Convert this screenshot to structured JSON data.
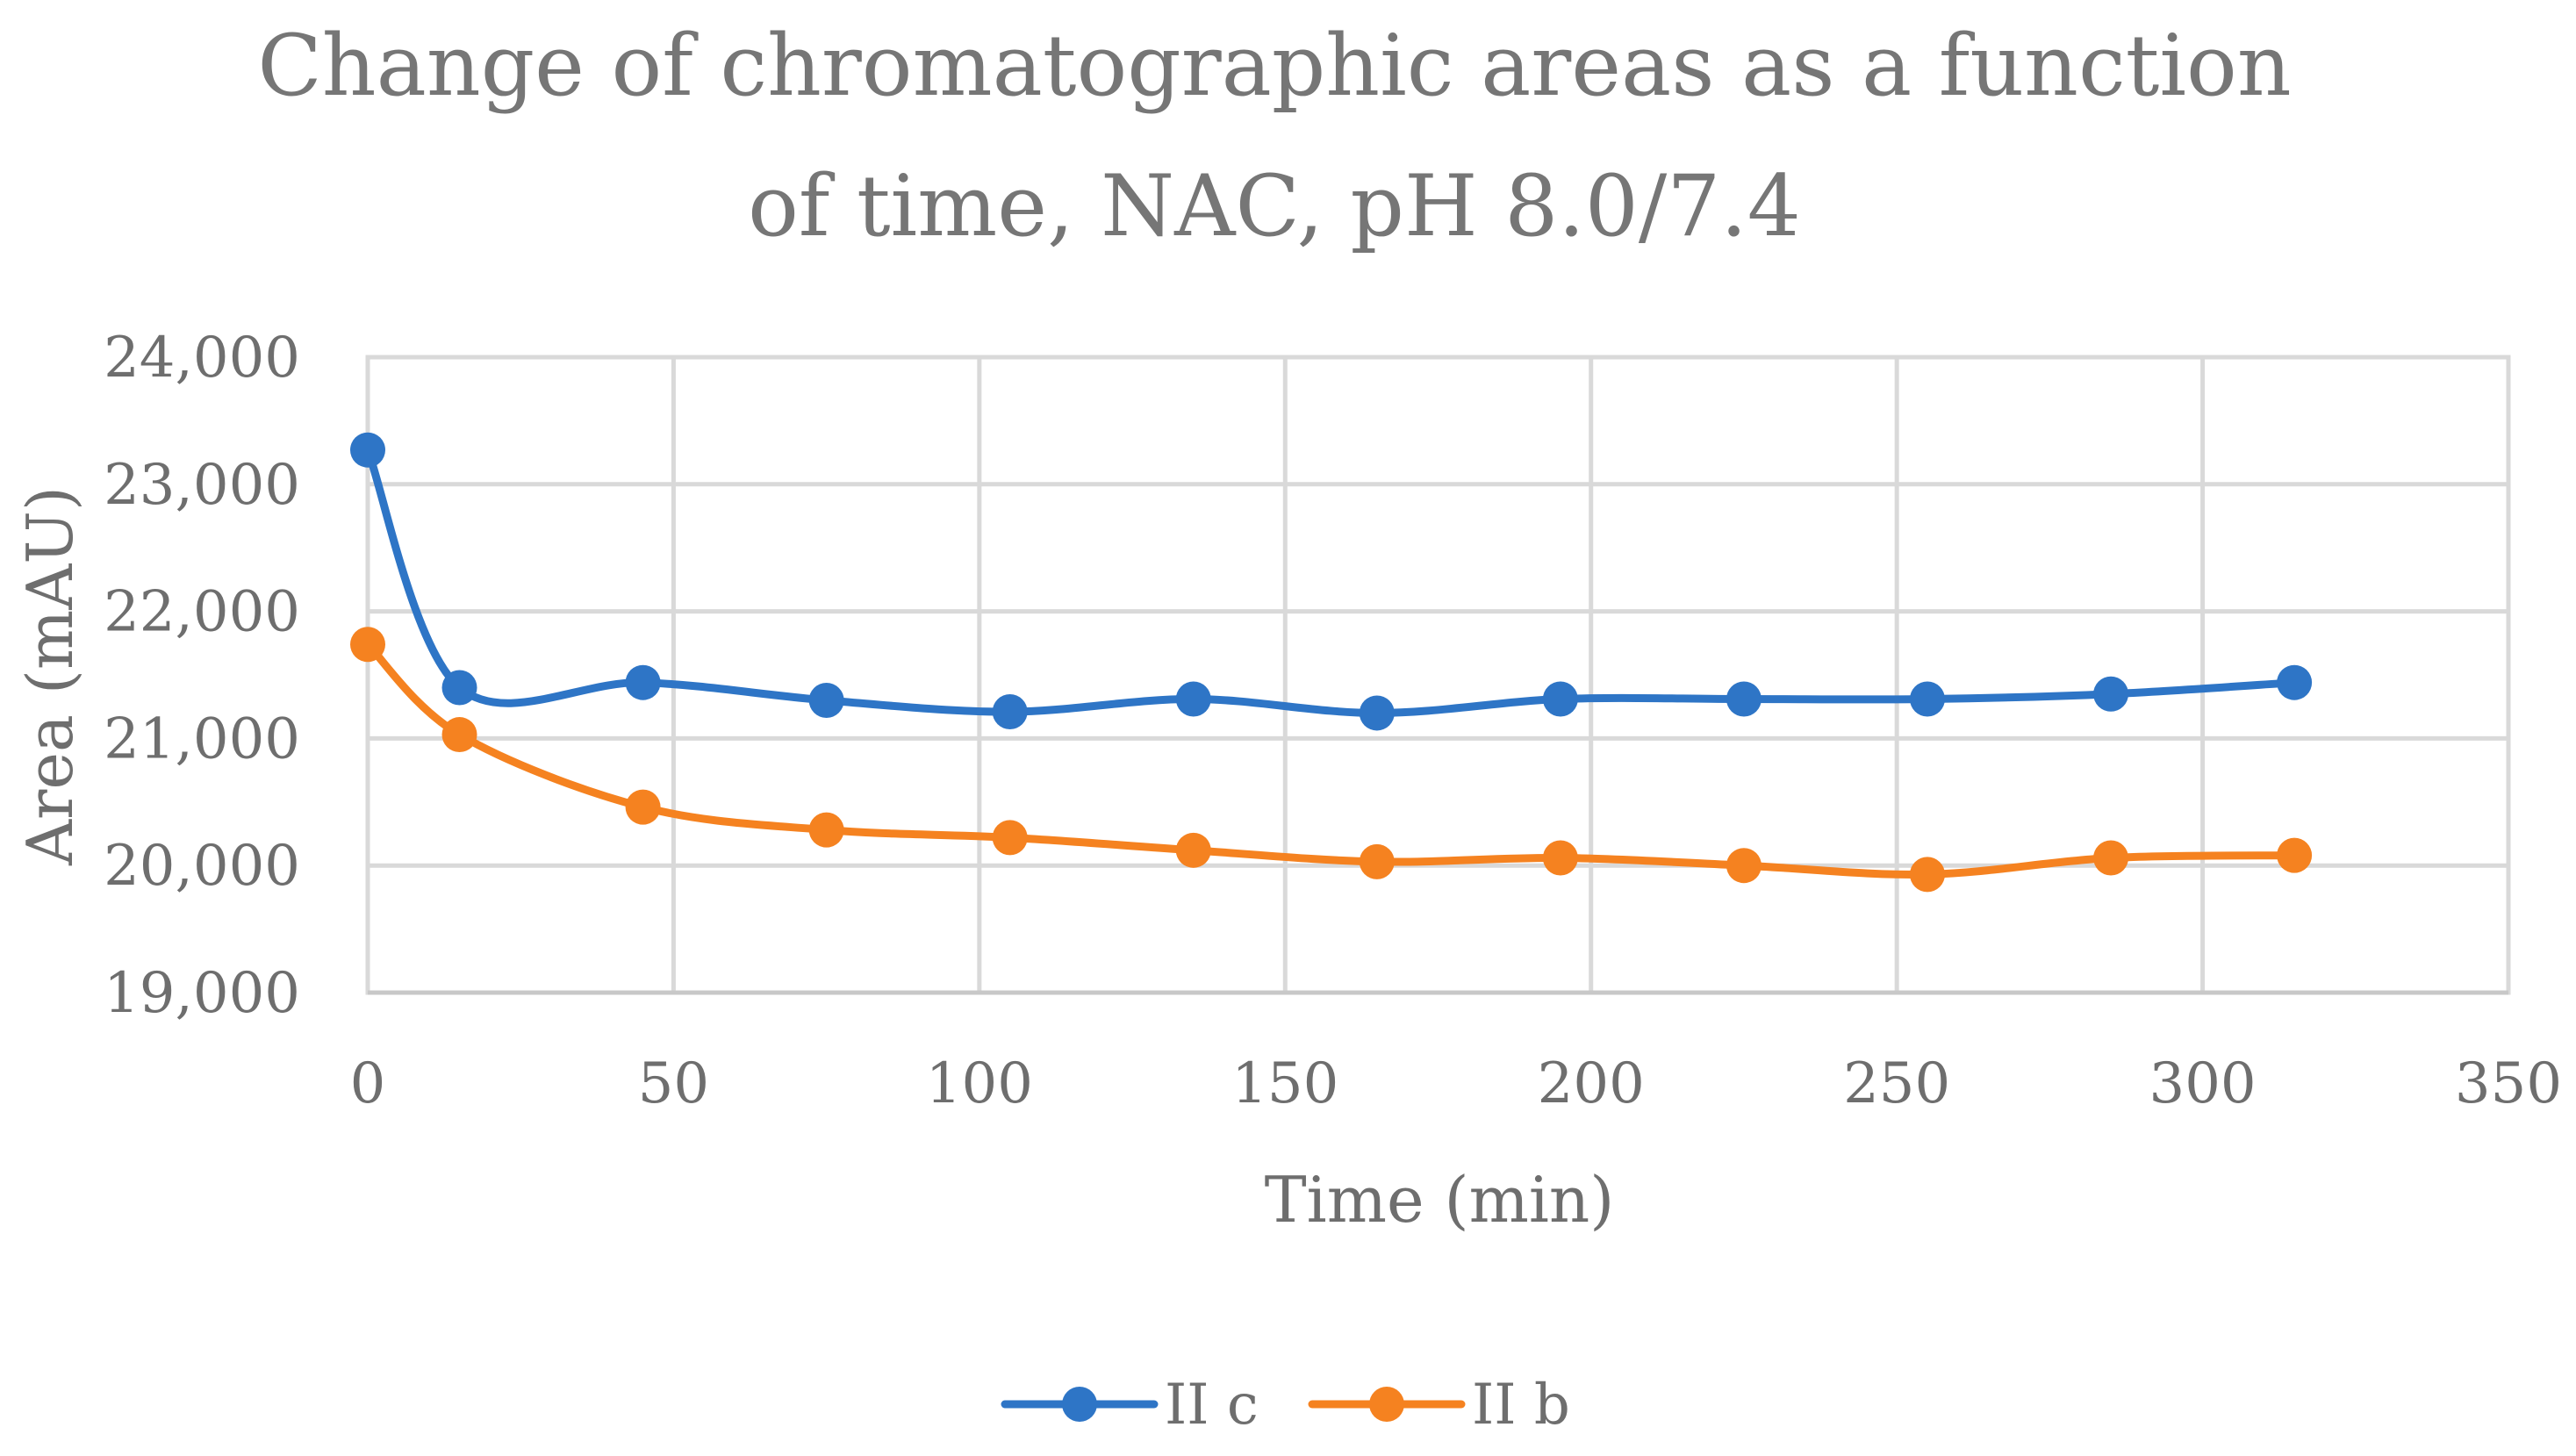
{
  "chart_data": {
    "type": "line",
    "title_lines": [
      "Change of chromatographic areas as a function",
      "of time, NAC, pH 8.0/7.4"
    ],
    "xlabel": "Time (min)",
    "ylabel": "Area (mAU)",
    "xlim": [
      0,
      350
    ],
    "ylim": [
      19000,
      24000
    ],
    "x_ticks": [
      0,
      50,
      100,
      150,
      200,
      250,
      300,
      350
    ],
    "y_ticks": [
      19000,
      20000,
      21000,
      22000,
      23000,
      24000
    ],
    "x_tick_labels": [
      "0",
      "50",
      "100",
      "150",
      "200",
      "250",
      "300",
      "350"
    ],
    "y_tick_labels": [
      "19,000",
      "20,000",
      "21,000",
      "22,000",
      "23,000",
      "24,000"
    ],
    "grid": true,
    "smooth": true,
    "legend_position": "bottom-center",
    "x": [
      0,
      15,
      45,
      75,
      105,
      135,
      165,
      195,
      225,
      255,
      285,
      315
    ],
    "series": [
      {
        "name": "II c",
        "color": "#2e75c6",
        "values": [
          23270,
          21400,
          21440,
          21300,
          21210,
          21310,
          21200,
          21310,
          21310,
          21310,
          21350,
          21440
        ]
      },
      {
        "name": "II b",
        "color": "#f58220",
        "values": [
          21740,
          21030,
          20460,
          20280,
          20220,
          20120,
          20030,
          20060,
          20000,
          19930,
          20060,
          20080
        ]
      }
    ]
  }
}
